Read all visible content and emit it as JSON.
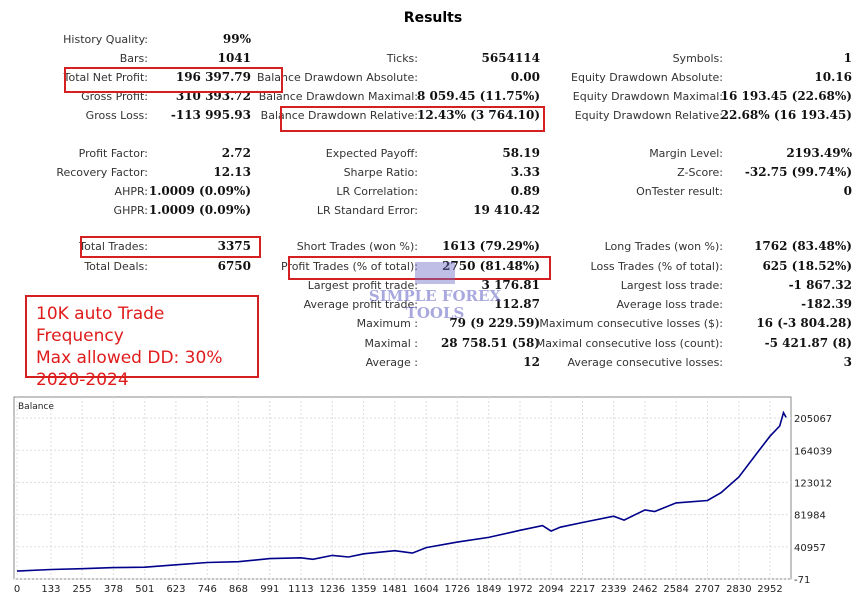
{
  "title": "Results",
  "rows": [
    [
      [
        "History Quality:",
        "99%"
      ],
      null,
      null
    ],
    [
      [
        "Bars:",
        "1041"
      ],
      [
        "Ticks:",
        "5654114"
      ],
      [
        "Symbols:",
        "1"
      ]
    ],
    [
      [
        "Total Net Profit:",
        "196 397.79"
      ],
      [
        "Balance Drawdown Absolute:",
        "0.00"
      ],
      [
        "Equity Drawdown Absolute:",
        "10.16"
      ]
    ],
    [
      [
        "Gross Profit:",
        "310 393.72"
      ],
      [
        "Balance Drawdown Maximal:",
        "8 059.45 (11.75%)"
      ],
      [
        "Equity Drawdown Maximal:",
        "16 193.45 (22.68%)"
      ]
    ],
    [
      [
        "Gross Loss:",
        "-113 995.93"
      ],
      [
        "Balance Drawdown Relative:",
        "12.43% (3 764.10)"
      ],
      [
        "Equity Drawdown Relative:",
        "22.68% (16 193.45)"
      ]
    ],
    null,
    [
      [
        "Profit Factor:",
        "2.72"
      ],
      [
        "Expected Payoff:",
        "58.19"
      ],
      [
        "Margin Level:",
        "2193.49%"
      ]
    ],
    [
      [
        "Recovery Factor:",
        "12.13"
      ],
      [
        "Sharpe Ratio:",
        "3.33"
      ],
      [
        "Z-Score:",
        "-32.75 (99.74%)"
      ]
    ],
    [
      [
        "AHPR:",
        "1.0009 (0.09%)"
      ],
      [
        "LR Correlation:",
        "0.89"
      ],
      [
        "OnTester result:",
        "0"
      ]
    ],
    [
      [
        "GHPR:",
        "1.0009 (0.09%)"
      ],
      [
        "LR Standard Error:",
        "19 410.42"
      ],
      null
    ],
    null,
    [
      [
        "Total Trades:",
        "3375"
      ],
      [
        "Short Trades (won %):",
        "1613 (79.29%)"
      ],
      [
        "Long Trades (won %):",
        "1762 (83.48%)"
      ]
    ],
    [
      [
        "Total Deals:",
        "6750"
      ],
      [
        "Profit Trades (% of total):",
        "2750 (81.48%)"
      ],
      [
        "Loss Trades (% of total):",
        "625 (18.52%)"
      ]
    ],
    [
      null,
      [
        "Largest profit trade:",
        "3 176.81"
      ],
      [
        "Largest loss trade:",
        "-1 867.32"
      ]
    ],
    [
      null,
      [
        "Average profit trade:",
        "112.87"
      ],
      [
        "Average loss trade:",
        "-182.39"
      ]
    ],
    [
      null,
      [
        "Maximum :",
        "79 (9 229.59)"
      ],
      [
        "Maximum consecutive losses ($):",
        "16 (-3 804.28)"
      ]
    ],
    [
      null,
      [
        "Maximal :",
        "28 758.51 (58)"
      ],
      [
        "Maximal consecutive loss (count):",
        "-5 421.87 (8)"
      ]
    ],
    [
      null,
      [
        "Average :",
        "12"
      ],
      [
        "Average consecutive losses:",
        "3"
      ]
    ]
  ],
  "annotation": [
    "10K auto Trade Frequency",
    "Max allowed DD: 30%",
    "2020-2024"
  ],
  "watermark": [
    "SIMPLE FOREX",
    "TOOLS"
  ],
  "colors": {
    "highlight": "#d42020",
    "line": "#00008b",
    "annotation": "#e01b1b"
  },
  "chart_data": {
    "type": "line",
    "title": "Balance",
    "x_ticks": [
      0,
      133,
      255,
      378,
      501,
      623,
      746,
      868,
      991,
      1113,
      1236,
      1359,
      1481,
      1604,
      1726,
      1849,
      1972,
      2094,
      2217,
      2339,
      2462,
      2584,
      2707,
      2830,
      2952
    ],
    "y_ticks": [
      -71,
      40957,
      81984,
      123012,
      164039,
      205067
    ],
    "xlim": [
      0,
      3035
    ],
    "ylim": [
      -71,
      232000
    ],
    "grid": true,
    "series": [
      {
        "name": "Balance",
        "x": [
          0,
          133,
          255,
          378,
          501,
          623,
          746,
          868,
          991,
          1113,
          1160,
          1236,
          1300,
          1359,
          1481,
          1550,
          1604,
          1726,
          1849,
          1972,
          2060,
          2094,
          2130,
          2217,
          2339,
          2380,
          2462,
          2500,
          2584,
          2707,
          2760,
          2830,
          2900,
          2952,
          2990,
          3005,
          3015
        ],
        "y": [
          10000,
          12000,
          13000,
          14500,
          15000,
          18000,
          21000,
          22000,
          26000,
          27000,
          25000,
          30000,
          28000,
          32000,
          36000,
          33000,
          40000,
          47000,
          53000,
          62000,
          68000,
          61000,
          66000,
          72000,
          80000,
          75000,
          88000,
          86000,
          97000,
          100000,
          110000,
          130000,
          160000,
          182000,
          195000,
          212000,
          206000
        ]
      }
    ]
  }
}
